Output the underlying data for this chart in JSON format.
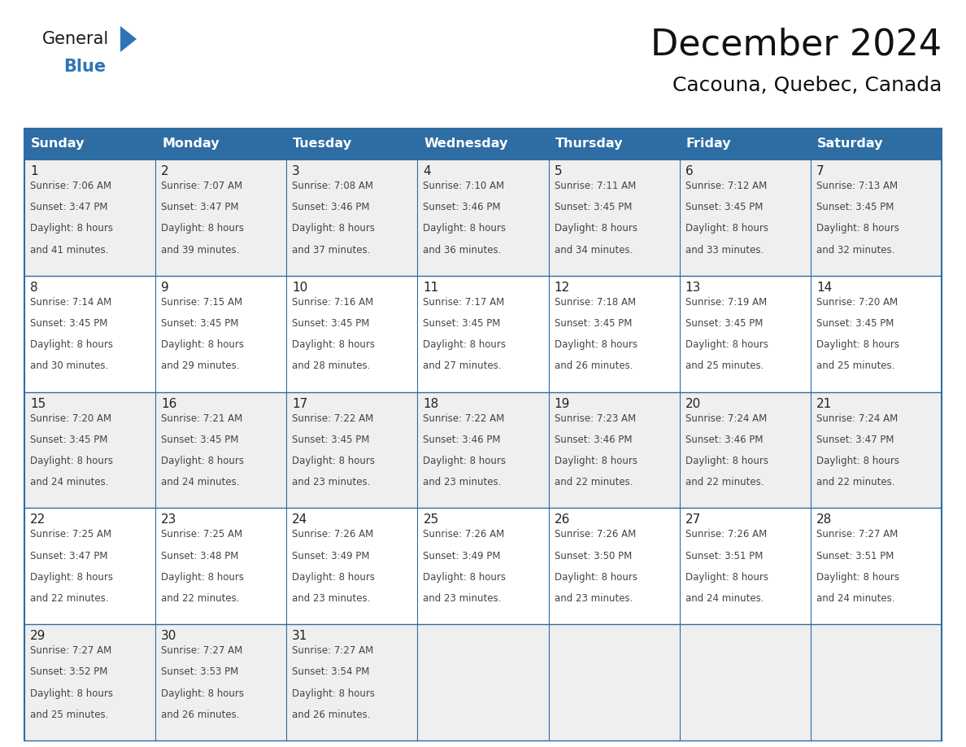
{
  "title": "December 2024",
  "subtitle": "Cacouna, Quebec, Canada",
  "header_bg": "#2E6DA4",
  "header_text_color": "#FFFFFF",
  "day_names": [
    "Sunday",
    "Monday",
    "Tuesday",
    "Wednesday",
    "Thursday",
    "Friday",
    "Saturday"
  ],
  "row_bg_even": "#EFEFEF",
  "row_bg_odd": "#FFFFFF",
  "grid_line_color": "#2E6DA4",
  "date_color": "#222222",
  "info_color": "#444444",
  "calendar": [
    [
      {
        "day": 1,
        "sunrise": "7:06 AM",
        "sunset": "3:47 PM",
        "daylight": "8 hours and 41 minutes."
      },
      {
        "day": 2,
        "sunrise": "7:07 AM",
        "sunset": "3:47 PM",
        "daylight": "8 hours and 39 minutes."
      },
      {
        "day": 3,
        "sunrise": "7:08 AM",
        "sunset": "3:46 PM",
        "daylight": "8 hours and 37 minutes."
      },
      {
        "day": 4,
        "sunrise": "7:10 AM",
        "sunset": "3:46 PM",
        "daylight": "8 hours and 36 minutes."
      },
      {
        "day": 5,
        "sunrise": "7:11 AM",
        "sunset": "3:45 PM",
        "daylight": "8 hours and 34 minutes."
      },
      {
        "day": 6,
        "sunrise": "7:12 AM",
        "sunset": "3:45 PM",
        "daylight": "8 hours and 33 minutes."
      },
      {
        "day": 7,
        "sunrise": "7:13 AM",
        "sunset": "3:45 PM",
        "daylight": "8 hours and 32 minutes."
      }
    ],
    [
      {
        "day": 8,
        "sunrise": "7:14 AM",
        "sunset": "3:45 PM",
        "daylight": "8 hours and 30 minutes."
      },
      {
        "day": 9,
        "sunrise": "7:15 AM",
        "sunset": "3:45 PM",
        "daylight": "8 hours and 29 minutes."
      },
      {
        "day": 10,
        "sunrise": "7:16 AM",
        "sunset": "3:45 PM",
        "daylight": "8 hours and 28 minutes."
      },
      {
        "day": 11,
        "sunrise": "7:17 AM",
        "sunset": "3:45 PM",
        "daylight": "8 hours and 27 minutes."
      },
      {
        "day": 12,
        "sunrise": "7:18 AM",
        "sunset": "3:45 PM",
        "daylight": "8 hours and 26 minutes."
      },
      {
        "day": 13,
        "sunrise": "7:19 AM",
        "sunset": "3:45 PM",
        "daylight": "8 hours and 25 minutes."
      },
      {
        "day": 14,
        "sunrise": "7:20 AM",
        "sunset": "3:45 PM",
        "daylight": "8 hours and 25 minutes."
      }
    ],
    [
      {
        "day": 15,
        "sunrise": "7:20 AM",
        "sunset": "3:45 PM",
        "daylight": "8 hours and 24 minutes."
      },
      {
        "day": 16,
        "sunrise": "7:21 AM",
        "sunset": "3:45 PM",
        "daylight": "8 hours and 24 minutes."
      },
      {
        "day": 17,
        "sunrise": "7:22 AM",
        "sunset": "3:45 PM",
        "daylight": "8 hours and 23 minutes."
      },
      {
        "day": 18,
        "sunrise": "7:22 AM",
        "sunset": "3:46 PM",
        "daylight": "8 hours and 23 minutes."
      },
      {
        "day": 19,
        "sunrise": "7:23 AM",
        "sunset": "3:46 PM",
        "daylight": "8 hours and 22 minutes."
      },
      {
        "day": 20,
        "sunrise": "7:24 AM",
        "sunset": "3:46 PM",
        "daylight": "8 hours and 22 minutes."
      },
      {
        "day": 21,
        "sunrise": "7:24 AM",
        "sunset": "3:47 PM",
        "daylight": "8 hours and 22 minutes."
      }
    ],
    [
      {
        "day": 22,
        "sunrise": "7:25 AM",
        "sunset": "3:47 PM",
        "daylight": "8 hours and 22 minutes."
      },
      {
        "day": 23,
        "sunrise": "7:25 AM",
        "sunset": "3:48 PM",
        "daylight": "8 hours and 22 minutes."
      },
      {
        "day": 24,
        "sunrise": "7:26 AM",
        "sunset": "3:49 PM",
        "daylight": "8 hours and 23 minutes."
      },
      {
        "day": 25,
        "sunrise": "7:26 AM",
        "sunset": "3:49 PM",
        "daylight": "8 hours and 23 minutes."
      },
      {
        "day": 26,
        "sunrise": "7:26 AM",
        "sunset": "3:50 PM",
        "daylight": "8 hours and 23 minutes."
      },
      {
        "day": 27,
        "sunrise": "7:26 AM",
        "sunset": "3:51 PM",
        "daylight": "8 hours and 24 minutes."
      },
      {
        "day": 28,
        "sunrise": "7:27 AM",
        "sunset": "3:51 PM",
        "daylight": "8 hours and 24 minutes."
      }
    ],
    [
      {
        "day": 29,
        "sunrise": "7:27 AM",
        "sunset": "3:52 PM",
        "daylight": "8 hours and 25 minutes."
      },
      {
        "day": 30,
        "sunrise": "7:27 AM",
        "sunset": "3:53 PM",
        "daylight": "8 hours and 26 minutes."
      },
      {
        "day": 31,
        "sunrise": "7:27 AM",
        "sunset": "3:54 PM",
        "daylight": "8 hours and 26 minutes."
      },
      null,
      null,
      null,
      null
    ]
  ],
  "logo_general_color": "#1a1a1a",
  "logo_blue_color": "#2E75B6",
  "fig_bg": "#FFFFFF",
  "title_fontsize": 32,
  "subtitle_fontsize": 18,
  "header_fontsize": 11.5,
  "day_num_fontsize": 11,
  "info_fontsize": 8.5
}
